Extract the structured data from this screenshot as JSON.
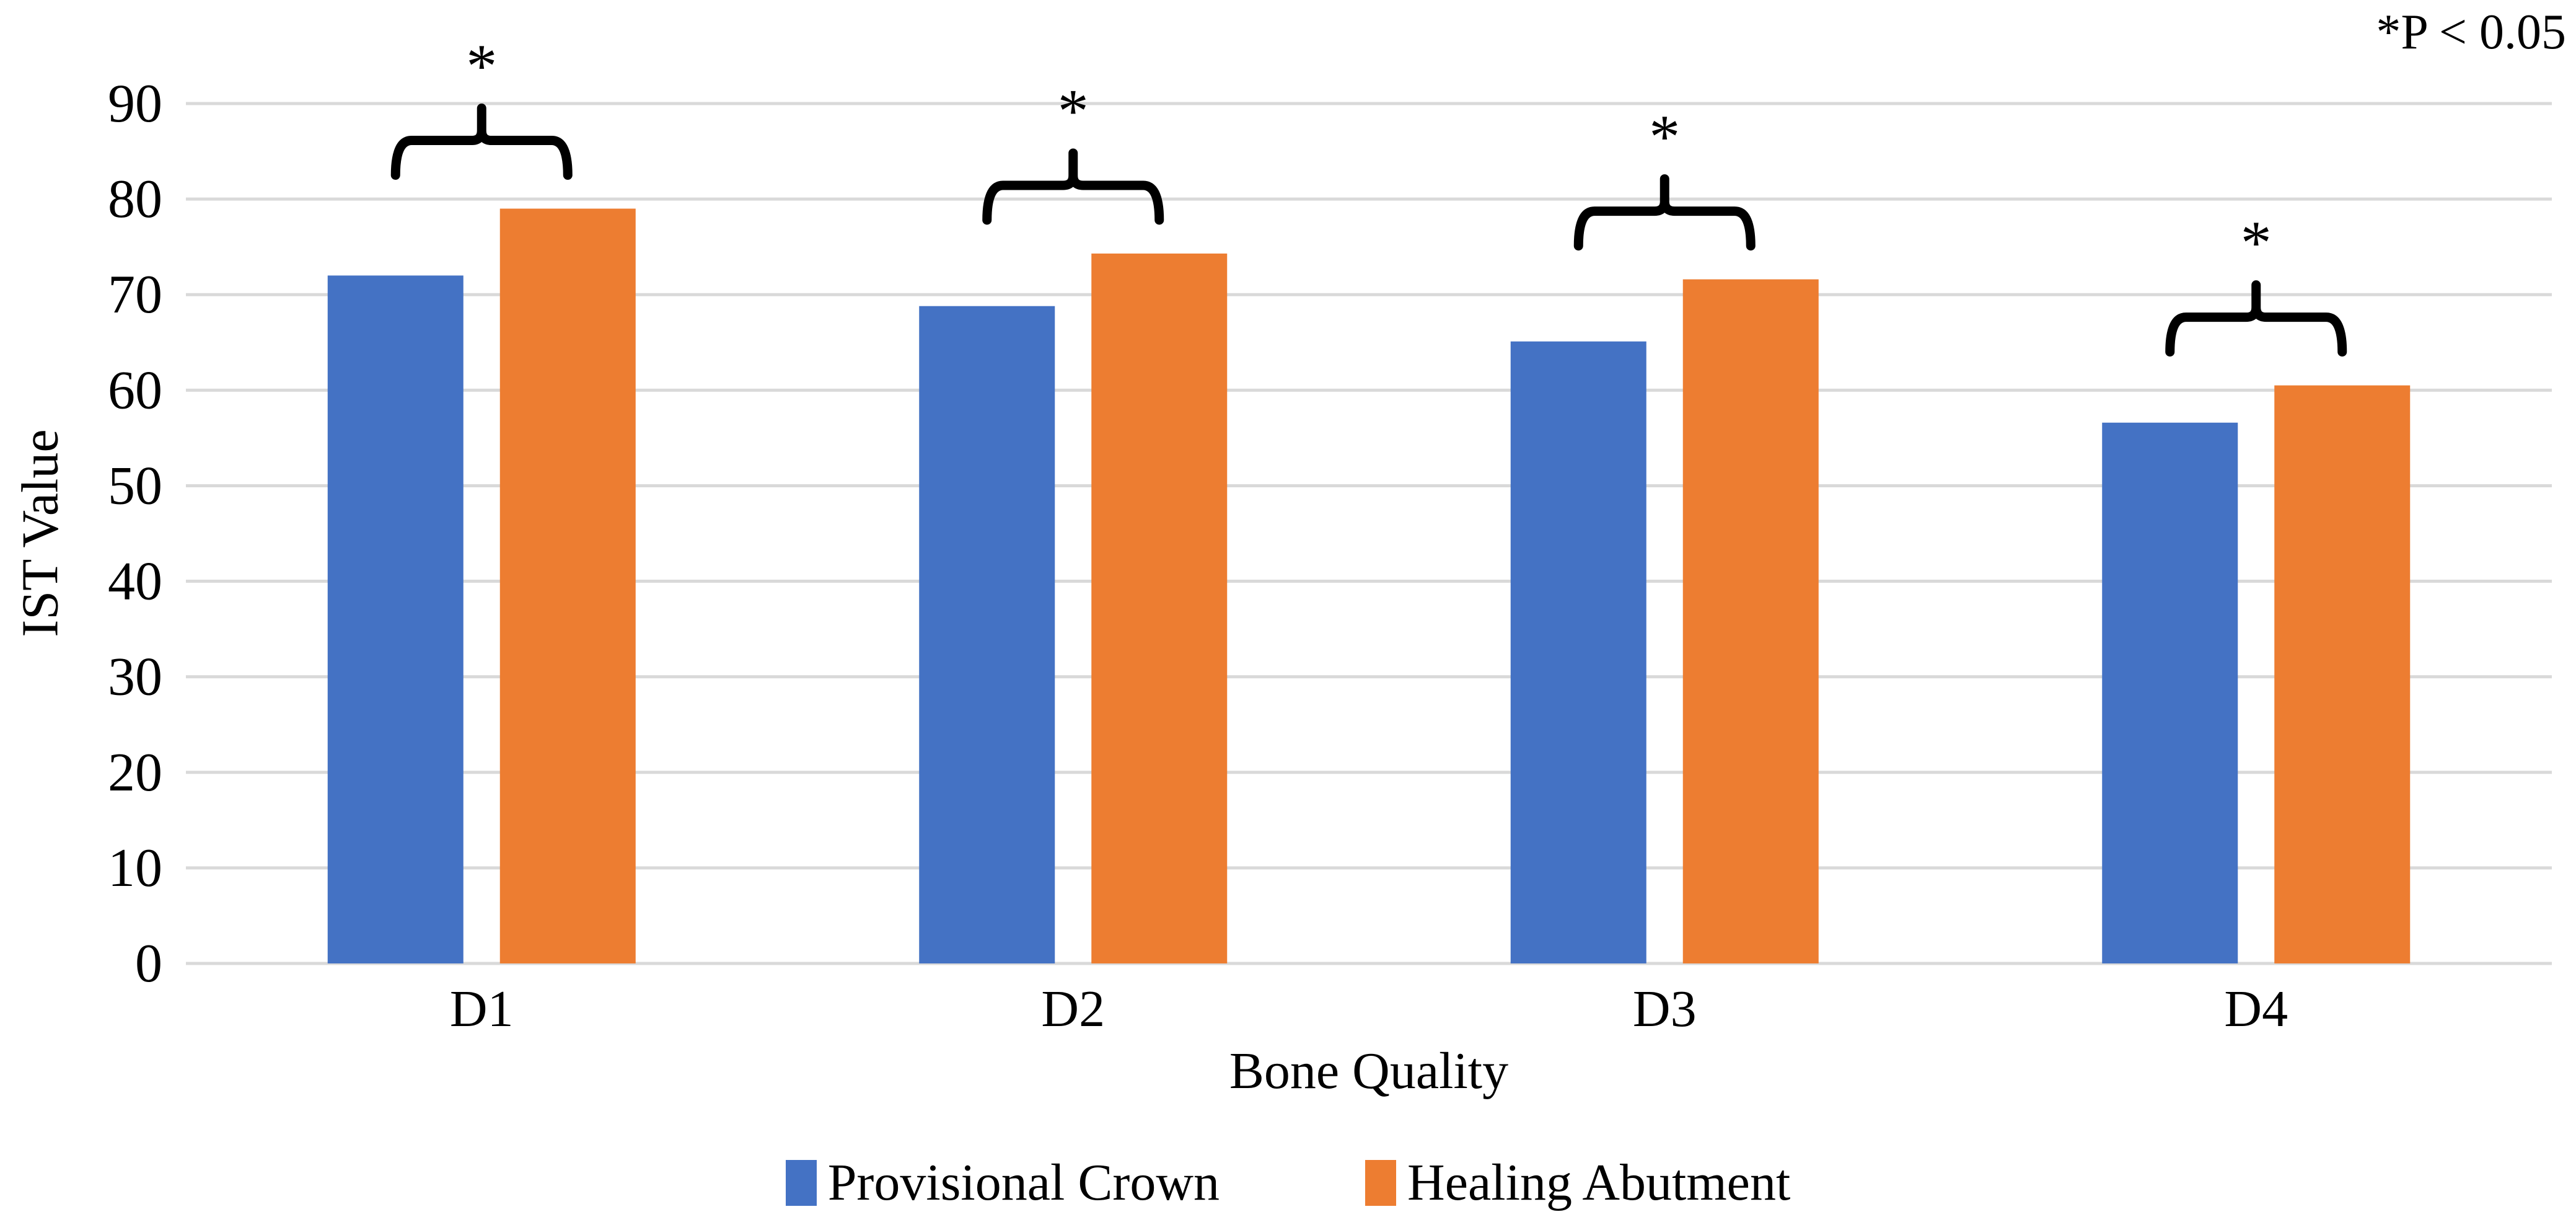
{
  "chart_data": {
    "type": "bar",
    "title": "",
    "categories": [
      "D1",
      "D2",
      "D3",
      "D4"
    ],
    "series": [
      {
        "name": "Provisional Crown",
        "color": "#4472C4",
        "values": [
          72.0,
          68.8,
          65.1,
          56.6
        ]
      },
      {
        "name": "Healing Abutment",
        "color": "#ED7D31",
        "values": [
          79.0,
          74.3,
          71.6,
          60.5
        ]
      }
    ],
    "xlabel": "Bone Quality",
    "ylabel": "IST Value",
    "ylim": [
      0,
      90
    ],
    "yticks": [
      0,
      10,
      20,
      30,
      40,
      50,
      60,
      70,
      80,
      90
    ],
    "grid": true,
    "gridline_color": "#D9D9D9",
    "bar_edge": "none",
    "legend_position": "bottom",
    "annotation": "*P < 0.05",
    "significance": [
      {
        "category": "D1",
        "marker": "*"
      },
      {
        "category": "D2",
        "marker": "*"
      },
      {
        "category": "D3",
        "marker": "*"
      },
      {
        "category": "D4",
        "marker": "*"
      }
    ],
    "marker_color": "#000000"
  }
}
